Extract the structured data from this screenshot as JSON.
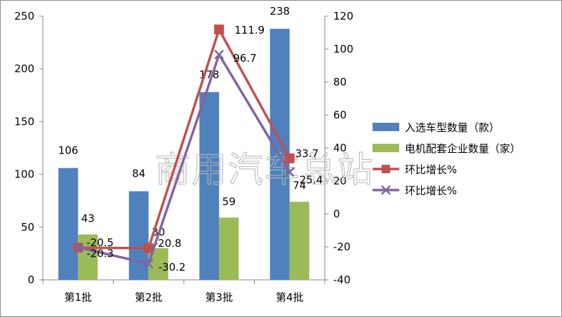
{
  "chart_data": {
    "type": "bar",
    "categories": [
      "第1批",
      "第2批",
      "第3批",
      "第4批"
    ],
    "series": [
      {
        "name": "入选车型数量（款）",
        "kind": "bar",
        "axis": "left",
        "color": "#4f81bd",
        "values": [
          106,
          84,
          178,
          238
        ]
      },
      {
        "name": "电机配套企业数量（家）",
        "kind": "bar",
        "axis": "left",
        "color": "#9bbb59",
        "values": [
          43,
          30,
          59,
          74
        ]
      },
      {
        "name": "环比增长%",
        "kind": "line",
        "marker": "square",
        "axis": "right",
        "color": "#c0504d",
        "values": [
          -20.5,
          -20.8,
          111.9,
          33.7
        ]
      },
      {
        "name": "环比增长%",
        "kind": "line",
        "marker": "x",
        "axis": "right",
        "color": "#8064a2",
        "values": [
          -20.3,
          -30.2,
          96.7,
          25.4
        ]
      }
    ],
    "y_left": {
      "lim": [
        0,
        250
      ],
      "ticks": [
        "0",
        "50",
        "100",
        "150",
        "200",
        "250"
      ]
    },
    "y_right": {
      "lim": [
        -40,
        120
      ],
      "ticks": [
        "-40",
        "-20",
        "0",
        "20",
        "40",
        "60",
        "80",
        "100",
        "120"
      ]
    },
    "legend_position": "right",
    "grid": false
  },
  "watermark": "商用汽车总站"
}
